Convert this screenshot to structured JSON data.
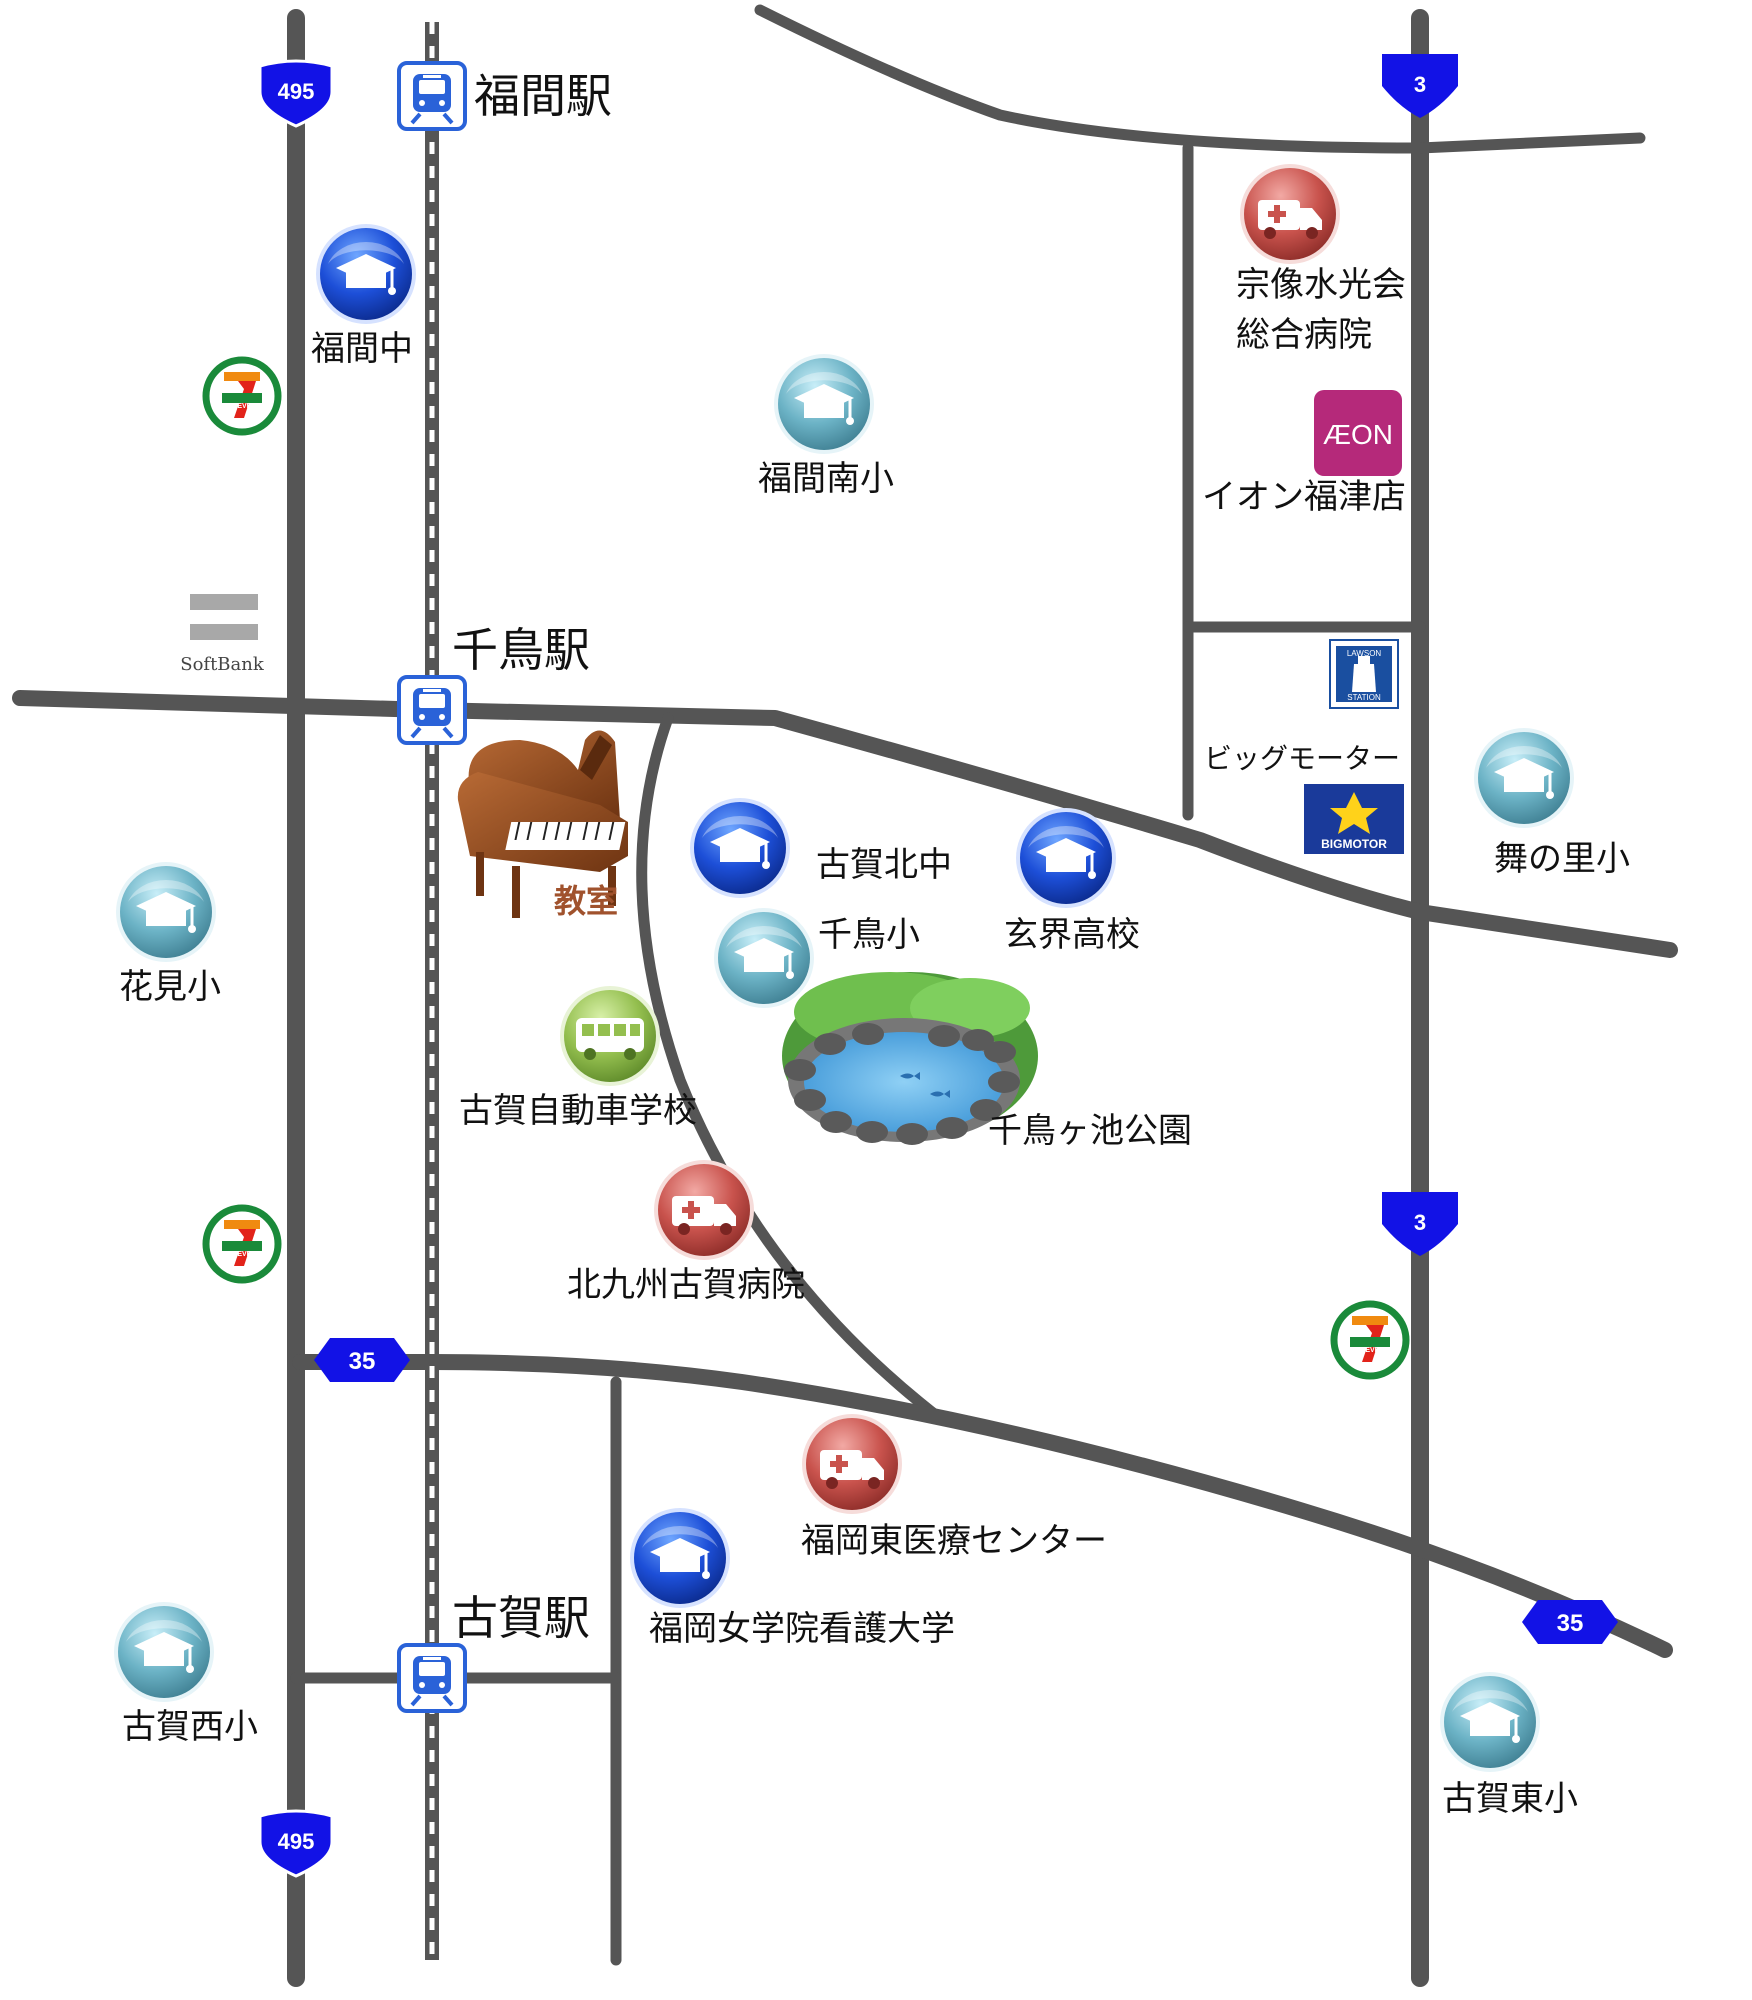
{
  "route_badges": {
    "r495": "495",
    "r3": "3",
    "r35": "35"
  },
  "stations": {
    "fukuma": "福間駅",
    "chidori": "千鳥駅",
    "koga": "古賀駅"
  },
  "schools": {
    "fukuma_chu": "福間中",
    "fukuma_minami_sho": "福間南小",
    "hanami_sho": "花見小",
    "koga_kita_chu": "古賀北中",
    "chidori_sho": "千鳥小",
    "genkai_koko": "玄界高校",
    "mainosato_sho": "舞の里小",
    "koga_nishi_sho": "古賀西小",
    "koga_higashi_sho": "古賀東小",
    "fukuoka_joshi": "福岡女学院看護大学"
  },
  "hospitals": {
    "munakata_line1": "宗像水光会",
    "munakata_line2": "総合病院",
    "kitakyushu_koga": "北九州古賀病院",
    "fukuoka_higashi": "福岡東医療センター"
  },
  "shops": {
    "aeon_logo": "ÆON",
    "aeon_label": "イオン福津店",
    "bigmotor_label": "ビッグモーター",
    "bigmotor_logo": "BIGMOTOR",
    "lawson_logo_top": "LAWSON",
    "lawson_logo_bottom": "STATION",
    "softbank": "SoftBank",
    "seven_eleven": "ELEVEn"
  },
  "places": {
    "classroom": "教室",
    "driving_school": "古賀自動車学校",
    "park": "千鳥ヶ池公園"
  },
  "colors": {
    "road": "#555555",
    "route_shield": "#1212e6",
    "school_dark": "#1840c8",
    "school_light": "#5fa8bd",
    "hospital": "#c0504d",
    "bus": "#8db84a",
    "station_icon": "#2a62d8",
    "aeon": "#b5297a",
    "bigmotor": "#1a3a9a",
    "lawson": "#1a4fa0",
    "piano": "#8b4a20",
    "classroom_text": "#a0522d"
  }
}
